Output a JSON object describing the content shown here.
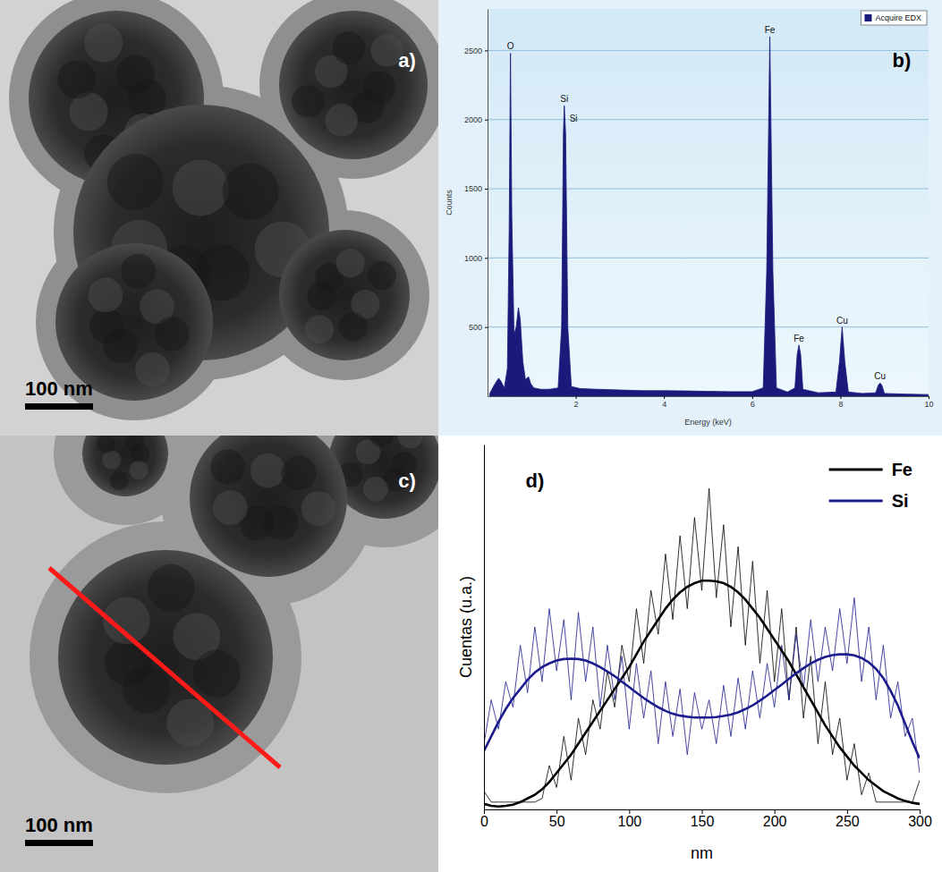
{
  "chart_data": [
    {
      "type": "image",
      "label": "a)",
      "scale_bar": "100 nm"
    },
    {
      "type": "area",
      "label": "b)",
      "x_label": "Energy (keV)",
      "y_label": "Counts",
      "x": [
        0.05,
        0.15,
        0.25,
        0.3,
        0.38,
        0.45,
        0.49,
        0.52,
        0.55,
        0.6,
        0.65,
        0.7,
        0.74,
        0.8,
        0.86,
        0.93,
        0.98,
        1.05,
        1.2,
        1.4,
        1.6,
        1.68,
        1.72,
        1.74,
        1.77,
        1.82,
        1.9,
        2.1,
        2.5,
        3,
        3.5,
        4,
        4.5,
        5,
        5.5,
        6,
        6.25,
        6.33,
        6.4,
        6.47,
        6.55,
        6.8,
        6.97,
        7.02,
        7.06,
        7.1,
        7.15,
        7.5,
        7.9,
        7.98,
        8.04,
        8.1,
        8.18,
        8.5,
        8.8,
        8.86,
        8.9,
        8.94,
        9,
        9.5,
        10
      ],
      "series": [
        {
          "name": "Acquire EDX",
          "color": "#1a1a7a",
          "values": [
            20,
            80,
            130,
            110,
            60,
            200,
            1200,
            2480,
            1300,
            450,
            500,
            640,
            560,
            250,
            120,
            140,
            90,
            60,
            50,
            50,
            60,
            500,
            1900,
            2100,
            1900,
            500,
            70,
            55,
            50,
            45,
            40,
            40,
            38,
            35,
            33,
            33,
            60,
            900,
            2600,
            900,
            60,
            30,
            60,
            300,
            370,
            300,
            50,
            25,
            30,
            250,
            500,
            250,
            30,
            20,
            25,
            80,
            95,
            80,
            20,
            15,
            12
          ]
        }
      ],
      "xlim": [
        0,
        10
      ],
      "xticks": [
        2,
        4,
        6,
        8,
        10
      ],
      "ylim": [
        0,
        2800
      ],
      "yticks": [
        500,
        1000,
        1500,
        2000,
        2500
      ],
      "grid": true,
      "legend": "upper right",
      "annotations": [
        {
          "text": "O",
          "x": 0.52,
          "y": 2480
        },
        {
          "text": "Si",
          "x": 1.74,
          "y": 2100
        },
        {
          "text": "Si",
          "x": 1.95,
          "y": 1960
        },
        {
          "text": "Fe",
          "x": 6.4,
          "y": 2600
        },
        {
          "text": "Fe",
          "x": 7.06,
          "y": 370
        },
        {
          "text": "Cu",
          "x": 8.04,
          "y": 500
        },
        {
          "text": "Cu",
          "x": 8.9,
          "y": 95
        }
      ]
    },
    {
      "type": "image",
      "label": "c)",
      "scale_bar": "100 nm"
    },
    {
      "type": "line",
      "label": "d)",
      "x_label": "nm",
      "y_label": "Cuentas (u.a.)",
      "x": [
        0,
        5,
        10,
        15,
        20,
        25,
        30,
        35,
        40,
        45,
        50,
        55,
        60,
        65,
        70,
        75,
        80,
        85,
        90,
        95,
        100,
        105,
        110,
        115,
        120,
        125,
        130,
        135,
        140,
        145,
        150,
        155,
        160,
        165,
        170,
        175,
        180,
        185,
        190,
        195,
        200,
        205,
        210,
        215,
        220,
        225,
        230,
        235,
        240,
        245,
        250,
        255,
        260,
        265,
        270,
        275,
        280,
        285,
        290,
        295,
        300
      ],
      "series": [
        {
          "name": "Fe",
          "color": "#000000",
          "values": [
            1.5,
            1,
            0.8,
            1,
            1.3,
            2,
            3,
            4,
            5.5,
            7.5,
            10,
            12.5,
            15,
            18,
            21,
            24,
            27,
            30,
            33,
            36,
            39,
            42.5,
            46,
            49,
            52,
            55,
            57.5,
            59.5,
            61,
            62,
            62.7,
            62.7,
            62.5,
            62,
            61,
            59.5,
            57.5,
            55,
            52.5,
            49.5,
            46.5,
            43.5,
            40.5,
            37,
            33.5,
            30,
            26.5,
            23,
            20,
            17,
            14.5,
            12,
            10,
            8,
            6.5,
            5,
            4,
            3,
            2.3,
            1.8,
            1.5
          ],
          "raw": [
            5,
            2,
            2,
            2,
            2,
            2,
            2,
            2,
            3,
            12,
            6,
            20,
            8,
            25,
            15,
            30,
            22,
            38,
            28,
            45,
            35,
            55,
            40,
            60,
            48,
            70,
            52,
            75,
            55,
            80,
            60,
            88,
            58,
            78,
            50,
            72,
            45,
            68,
            40,
            60,
            35,
            55,
            30,
            50,
            25,
            42,
            18,
            35,
            15,
            25,
            8,
            18,
            4,
            10,
            2,
            2,
            2,
            2,
            2,
            2,
            8
          ]
        },
        {
          "name": "Si",
          "color": "#1c1c8c",
          "values": [
            16,
            20,
            24,
            27.5,
            30.5,
            33,
            35.5,
            37.5,
            39,
            40,
            40.8,
            41.2,
            41.3,
            41.2,
            40.8,
            40,
            39,
            37.8,
            36.5,
            35,
            33.5,
            32,
            30.5,
            29.2,
            28,
            27,
            26.2,
            25.7,
            25.4,
            25.2,
            25.2,
            25.2,
            25.3,
            25.6,
            26,
            26.6,
            27.5,
            28.5,
            29.8,
            31.2,
            32.7,
            34.2,
            35.8,
            37.3,
            38.7,
            40,
            41,
            41.8,
            42.3,
            42.5,
            42.5,
            42.2,
            41.5,
            40.3,
            38.5,
            36,
            32.5,
            28.5,
            23.5,
            18.5,
            14
          ],
          "raw": [
            18,
            30,
            22,
            35,
            28,
            45,
            32,
            50,
            35,
            55,
            38,
            52,
            30,
            54,
            35,
            50,
            28,
            45,
            30,
            42,
            22,
            40,
            25,
            38,
            18,
            35,
            20,
            33,
            15,
            32,
            22,
            30,
            18,
            34,
            20,
            36,
            22,
            38,
            25,
            40,
            28,
            45,
            30,
            48,
            33,
            52,
            35,
            50,
            38,
            55,
            40,
            58,
            35,
            50,
            30,
            45,
            25,
            35,
            20,
            25,
            10
          ]
        }
      ],
      "xlim": [
        0,
        300
      ],
      "xticks": [
        0,
        50,
        100,
        150,
        200,
        250,
        300
      ],
      "ylim": [
        0,
        100
      ],
      "tick_labels": "x",
      "legend": "upper right"
    }
  ]
}
